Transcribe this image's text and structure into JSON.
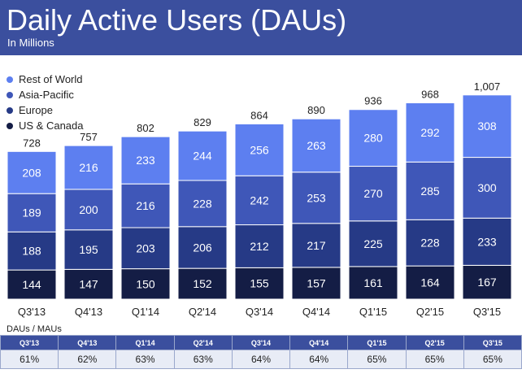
{
  "header": {
    "title": "Daily Active Users (DAUs)",
    "subtitle": "In Millions"
  },
  "colors": {
    "rest_of_world": "#5d7ff0",
    "asia_pacific": "#3f57b8",
    "europe": "#263a86",
    "us_canada": "#141d45",
    "header_bg": "#3b4f9e"
  },
  "chart_data": {
    "type": "bar",
    "stacked": true,
    "title": "Daily Active Users (DAUs)",
    "subtitle": "In Millions",
    "categories": [
      "Q3'13",
      "Q4'13",
      "Q1'14",
      "Q2'14",
      "Q3'14",
      "Q4'14",
      "Q1'15",
      "Q2'15",
      "Q3'15"
    ],
    "series": [
      {
        "name": "US & Canada",
        "values": [
          144,
          147,
          150,
          152,
          155,
          157,
          161,
          164,
          167
        ]
      },
      {
        "name": "Europe",
        "values": [
          188,
          195,
          203,
          206,
          212,
          217,
          225,
          228,
          233
        ]
      },
      {
        "name": "Asia-Pacific",
        "values": [
          189,
          200,
          216,
          228,
          242,
          253,
          270,
          285,
          300
        ]
      },
      {
        "name": "Rest of World",
        "values": [
          208,
          216,
          233,
          244,
          256,
          263,
          280,
          292,
          308
        ]
      }
    ],
    "totals": [
      "728",
      "757",
      "802",
      "829",
      "864",
      "890",
      "936",
      "968",
      "1,007"
    ],
    "legend_position": "top-left",
    "grid": false
  },
  "table": {
    "label": "DAUs / MAUs",
    "headers": [
      "Q3'13",
      "Q4'13",
      "Q1'14",
      "Q2'14",
      "Q3'14",
      "Q4'14",
      "Q1'15",
      "Q2'15",
      "Q3'15"
    ],
    "values": [
      "61%",
      "62%",
      "63%",
      "63%",
      "64%",
      "64%",
      "65%",
      "65%",
      "65%"
    ]
  }
}
